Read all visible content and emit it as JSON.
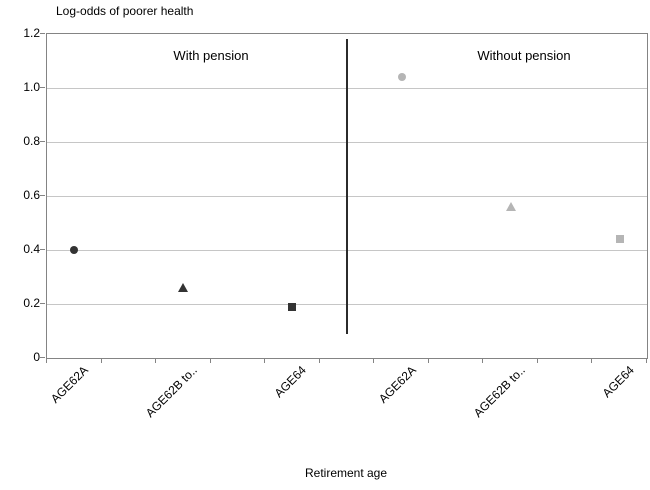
{
  "chart_data": {
    "type": "scatter",
    "title": "Log-odds of poorer health",
    "xlabel": "Retirement age",
    "ylim": [
      0,
      1.2
    ],
    "ytick_labels": [
      "1.2",
      "1.0",
      "0.8",
      "0.6",
      "0.4",
      "0.2",
      "0"
    ],
    "ytick_values": [
      1.2,
      1.0,
      0.8,
      0.6,
      0.4,
      0.2,
      0
    ],
    "grid": true,
    "categories": [
      "AGE62A",
      "AGE62B to..",
      "AGE64",
      "AGE62A",
      "AGE62B to..",
      "AGE64"
    ],
    "groups": [
      {
        "name": "With pension",
        "color": "#333333",
        "points": [
          {
            "category": "AGE62A",
            "marker": "circle",
            "value": 0.4
          },
          {
            "category": "AGE62B to..",
            "marker": "triangle",
            "value": 0.26
          },
          {
            "category": "AGE64",
            "marker": "square",
            "value": 0.19
          }
        ]
      },
      {
        "name": "Without pension",
        "color": "#b5b5b5",
        "points": [
          {
            "category": "AGE62A",
            "marker": "circle",
            "value": 1.04
          },
          {
            "category": "AGE62B to..",
            "marker": "triangle",
            "value": 0.56
          },
          {
            "category": "AGE64",
            "marker": "square",
            "value": 0.44
          }
        ]
      }
    ],
    "divider": {
      "position": "between With pension and Without pension",
      "y_from": 0.09,
      "y_to": 1.18
    },
    "colors": {
      "grid": "#c6c6c6",
      "axis": "#848484",
      "divider": "#2b2b2b",
      "text": "#000000"
    }
  }
}
